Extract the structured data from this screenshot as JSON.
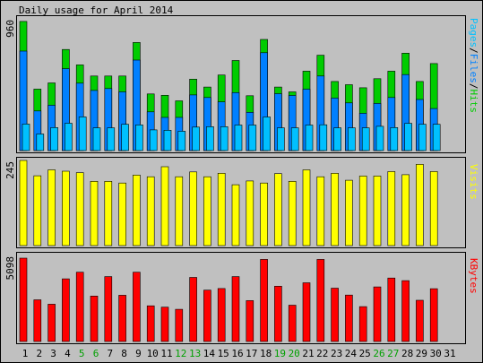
{
  "chart_data": [
    {
      "type": "bar",
      "title": "Daily usage for April 2014",
      "categories": [
        "1",
        "2",
        "3",
        "4",
        "5",
        "6",
        "7",
        "8",
        "9",
        "10",
        "11",
        "12",
        "13",
        "14",
        "15",
        "16",
        "17",
        "18",
        "19",
        "20",
        "21",
        "22",
        "23",
        "24",
        "25",
        "26",
        "27",
        "28",
        "29",
        "30",
        "31"
      ],
      "weekend_days": [
        "5",
        "6",
        "12",
        "13",
        "19",
        "20",
        "26",
        "27"
      ],
      "y_tick_label": "960",
      "ylim": [
        0,
        960
      ],
      "legend": [
        "Pages",
        "Files",
        "Hits"
      ],
      "series": [
        {
          "name": "Hits",
          "color": "#00cc00",
          "values": [
            935,
            445,
            490,
            732,
            620,
            540,
            540,
            540,
            782,
            410,
            400,
            360,
            517,
            460,
            547,
            652,
            397,
            804,
            460,
            425,
            575,
            690,
            500,
            477,
            455,
            520,
            575,
            705,
            500,
            630,
            0
          ]
        },
        {
          "name": "Files",
          "color": "#0080ff",
          "values": [
            720,
            287,
            328,
            593,
            488,
            435,
            449,
            425,
            655,
            280,
            240,
            240,
            403,
            384,
            352,
            420,
            277,
            708,
            412,
            399,
            444,
            540,
            380,
            345,
            270,
            341,
            384,
            550,
            370,
            304,
            0
          ]
        },
        {
          "name": "Pages",
          "color": "#00c0ff",
          "values": [
            192,
            120,
            167,
            198,
            244,
            165,
            165,
            190,
            186,
            150,
            147,
            140,
            170,
            173,
            173,
            185,
            185,
            243,
            165,
            165,
            185,
            187,
            165,
            165,
            165,
            176,
            167,
            197,
            191,
            190,
            0
          ]
        }
      ]
    },
    {
      "type": "bar",
      "y_tick_label": "245",
      "ylim": [
        0,
        245
      ],
      "legend": [
        "Visits"
      ],
      "series": [
        {
          "name": "Visits",
          "color": "#ffff00",
          "values": [
            245,
            201,
            218,
            214,
            210,
            185,
            185,
            180,
            203,
            198,
            227,
            198,
            212,
            198,
            208,
            175,
            186,
            180,
            207,
            185,
            218,
            198,
            208,
            188,
            200,
            200,
            213,
            204,
            234,
            213,
            0
          ]
        }
      ]
    },
    {
      "type": "bar",
      "y_tick_label": "5098",
      "ylim": [
        0,
        5098
      ],
      "legend": [
        "KBytes"
      ],
      "series": [
        {
          "name": "KBytes",
          "color": "#ff0000",
          "values": [
            5098,
            2550,
            2280,
            3830,
            4240,
            2780,
            3970,
            2830,
            4240,
            2180,
            2100,
            1970,
            3920,
            3140,
            3240,
            3970,
            2500,
            5020,
            3380,
            2220,
            3590,
            5020,
            3260,
            2840,
            2130,
            3340,
            3880,
            3720,
            2520,
            3230,
            0
          ]
        }
      ]
    }
  ],
  "colors": {
    "background": "#c0c0c0",
    "plot": "#c0c0c0",
    "weekday_label": "#000000",
    "weekend_label": "#00a000",
    "pages": "#00c0ff",
    "files": "#0080ff",
    "hits": "#00cc00",
    "visits": "#ffff00",
    "kbytes": "#ff0000"
  },
  "legend_labels": {
    "pages": "Pages",
    "files": "Files",
    "hits": "Hits",
    "sep": "/",
    "visits": "Visits",
    "kbytes": "KBytes"
  }
}
